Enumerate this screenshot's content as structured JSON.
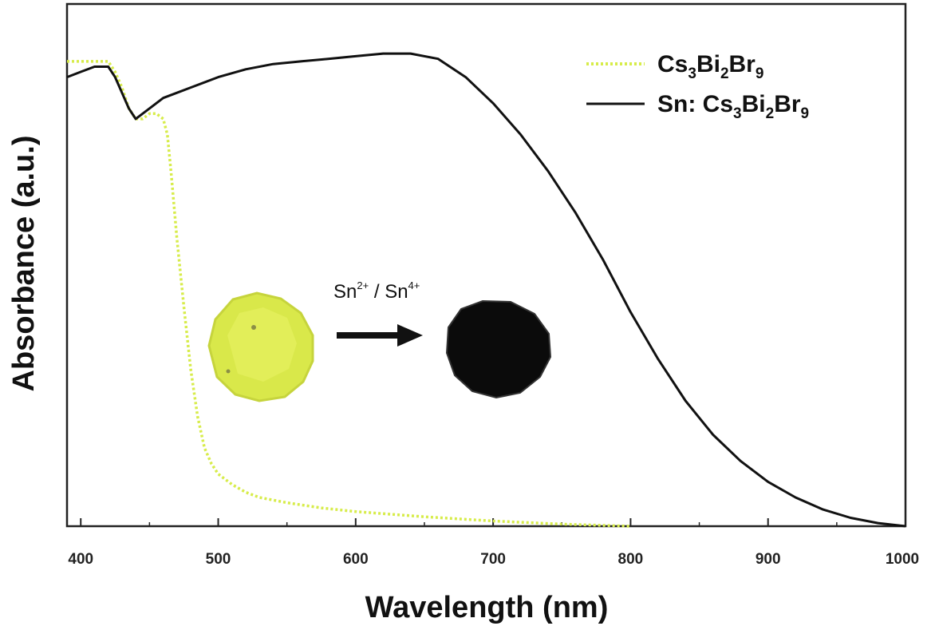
{
  "chart_data": {
    "type": "line",
    "xlabel": "Wavelength (nm)",
    "ylabel": "Absorbance (a.u.)",
    "xlim": [
      390,
      1000
    ],
    "ylim": [
      0,
      1.0
    ],
    "xticks": [
      400,
      500,
      600,
      700,
      800,
      900,
      1000
    ],
    "grid": false,
    "legend_placement": "top-right",
    "series": [
      {
        "name": "Cs3Bi2Br9",
        "name_parts": {
          "a": "Cs",
          "s1": "3",
          "b": "Bi",
          "s2": "2",
          "c": "Br",
          "s3": "9"
        },
        "color": "#d7ec4a",
        "dash": "dotted",
        "x": [
          390,
          400,
          410,
          420,
          425,
          430,
          435,
          440,
          445,
          450,
          455,
          460,
          463,
          466,
          470,
          475,
          480,
          485,
          490,
          495,
          500,
          510,
          520,
          530,
          550,
          575,
          600,
          650,
          700,
          750,
          800
        ],
        "y": [
          0.89,
          0.89,
          0.89,
          0.89,
          0.87,
          0.84,
          0.8,
          0.78,
          0.78,
          0.79,
          0.79,
          0.78,
          0.75,
          0.67,
          0.55,
          0.42,
          0.3,
          0.21,
          0.15,
          0.12,
          0.1,
          0.08,
          0.065,
          0.055,
          0.045,
          0.035,
          0.028,
          0.018,
          0.01,
          0.004,
          0.0
        ]
      },
      {
        "name": "Sn: Cs3Bi2Br9",
        "name_parts": {
          "pre": "Sn: ",
          "a": "Cs",
          "s1": "3",
          "b": "Bi",
          "s2": "2",
          "c": "Br",
          "s3": "9"
        },
        "color": "#111111",
        "dash": "solid",
        "x": [
          390,
          400,
          410,
          420,
          425,
          430,
          435,
          440,
          445,
          450,
          460,
          470,
          480,
          500,
          520,
          540,
          560,
          580,
          600,
          620,
          640,
          660,
          680,
          700,
          720,
          740,
          760,
          780,
          800,
          820,
          840,
          860,
          880,
          900,
          920,
          940,
          960,
          980,
          1000
        ],
        "y": [
          0.86,
          0.87,
          0.88,
          0.88,
          0.86,
          0.83,
          0.8,
          0.78,
          0.79,
          0.8,
          0.82,
          0.83,
          0.84,
          0.86,
          0.875,
          0.885,
          0.89,
          0.895,
          0.9,
          0.905,
          0.905,
          0.895,
          0.86,
          0.81,
          0.75,
          0.68,
          0.6,
          0.51,
          0.41,
          0.32,
          0.24,
          0.175,
          0.125,
          0.085,
          0.055,
          0.032,
          0.016,
          0.006,
          0.0
        ]
      }
    ],
    "annotation": {
      "a": "Sn",
      "s1": "2+",
      "b": " / Sn",
      "s2": "4+"
    }
  }
}
